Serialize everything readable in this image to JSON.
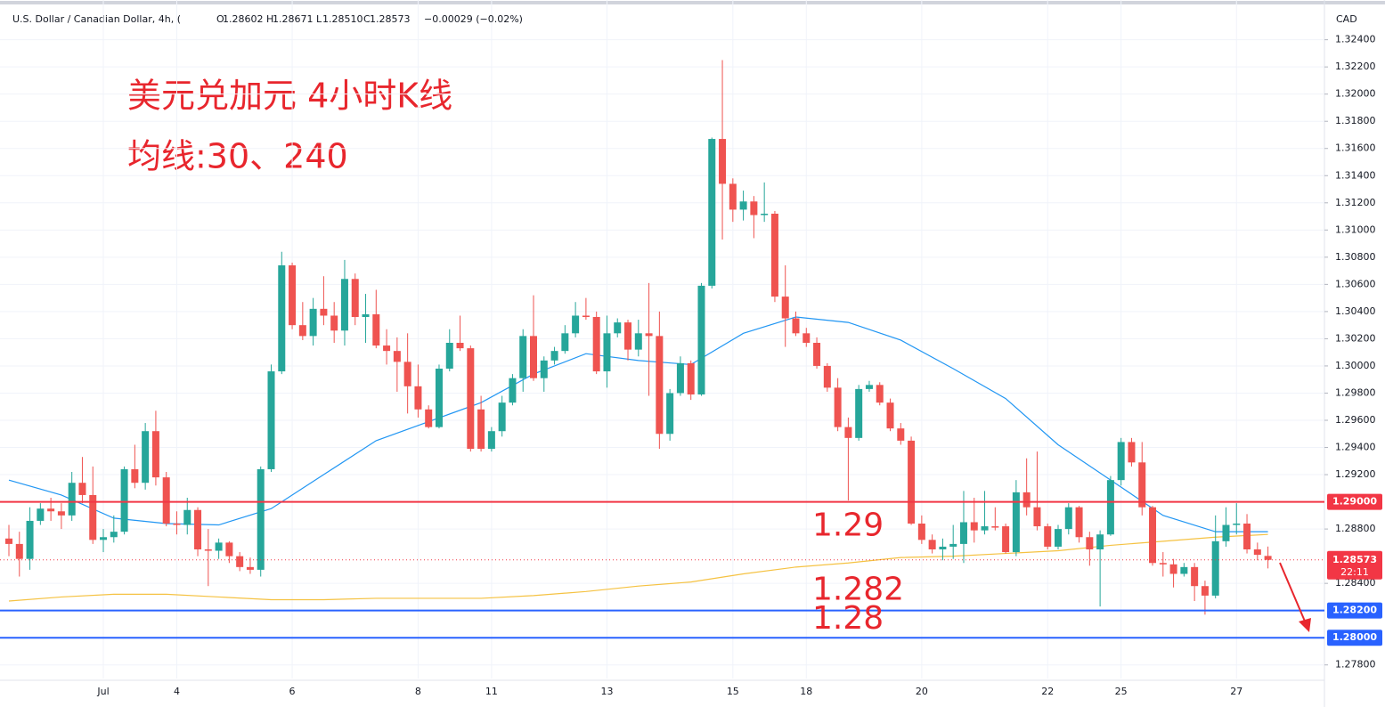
{
  "chart_data": {
    "type": "candlestick",
    "header": {
      "symbol": "U.S. Dollar / Canadian Dollar, 4h, (",
      "ohlc": [
        {
          "key": "O",
          "value": "1.28602"
        },
        {
          "key": "H",
          "value": "1.28671"
        },
        {
          "key": "L",
          "value": "1.28510"
        },
        {
          "key": "C",
          "value": "1.28573"
        }
      ],
      "change": "−0.00029 (−0.02%)"
    },
    "title": "美元兑加元 4小时K线",
    "subtitle": "均线:30、240",
    "currency": "CAD",
    "up_color": "#26a69a",
    "down_color": "#ef5350",
    "ylim": [
      1.277,
      1.3264
    ],
    "yticks": [
      {
        "value": 1.324,
        "label": "1.32400"
      },
      {
        "value": 1.322,
        "label": "1.32200"
      },
      {
        "value": 1.32,
        "label": "1.32000"
      },
      {
        "value": 1.318,
        "label": "1.31800"
      },
      {
        "value": 1.316,
        "label": "1.31600"
      },
      {
        "value": 1.314,
        "label": "1.31400"
      },
      {
        "value": 1.312,
        "label": "1.31200"
      },
      {
        "value": 1.31,
        "label": "1.31000"
      },
      {
        "value": 1.308,
        "label": "1.30800"
      },
      {
        "value": 1.306,
        "label": "1.30600"
      },
      {
        "value": 1.304,
        "label": "1.30400"
      },
      {
        "value": 1.302,
        "label": "1.30200"
      },
      {
        "value": 1.3,
        "label": "1.30000"
      },
      {
        "value": 1.298,
        "label": "1.29800"
      },
      {
        "value": 1.296,
        "label": "1.29600"
      },
      {
        "value": 1.294,
        "label": "1.29400"
      },
      {
        "value": 1.292,
        "label": "1.29200"
      },
      {
        "value": 1.288,
        "label": "1.28800"
      },
      {
        "value": 1.284,
        "label": "1.28400"
      },
      {
        "value": 1.278,
        "label": "1.27800"
      }
    ],
    "grid": true,
    "categories": [
      null,
      null,
      null,
      null,
      null,
      null,
      null,
      null,
      null,
      "Jul",
      null,
      null,
      null,
      null,
      null,
      null,
      "4",
      null,
      null,
      null,
      null,
      null,
      null,
      null,
      null,
      null,
      null,
      "6",
      null,
      null,
      null,
      null,
      null,
      null,
      null,
      null,
      null,
      null,
      null,
      "8",
      null,
      null,
      null,
      null,
      null,
      null,
      "11",
      null,
      null,
      null,
      null,
      null,
      null,
      null,
      null,
      null,
      null,
      "13",
      null,
      null,
      null,
      null,
      null,
      null,
      null,
      null,
      null,
      null,
      null,
      "15",
      null,
      null,
      null,
      null,
      null,
      null,
      "18",
      null,
      null,
      null,
      null,
      null,
      null,
      null,
      null,
      null,
      null,
      "20",
      null,
      null,
      null,
      null,
      null,
      null,
      null,
      null,
      null,
      null,
      null,
      "22",
      null,
      null,
      null,
      null,
      null,
      null,
      "25",
      null,
      null,
      null,
      null,
      null,
      null,
      null,
      null,
      null,
      null,
      "27",
      null,
      null,
      null
    ],
    "open": [
      1.2873,
      1.2869,
      1.2858,
      1.2886,
      1.2895,
      1.2893,
      1.289,
      1.2914,
      1.2905,
      1.2872,
      1.2874,
      1.2878,
      1.2924,
      1.2914,
      1.2952,
      1.2918,
      1.2884,
      1.2883,
      1.2894,
      1.2865,
      1.2864,
      1.287,
      1.286,
      1.2852,
      1.285,
      1.2924,
      1.2996,
      1.3074,
      1.303,
      1.3022,
      1.3042,
      1.3037,
      1.3026,
      1.3064,
      1.3036,
      1.3038,
      1.3015,
      1.3011,
      1.3003,
      1.2985,
      1.2968,
      1.2955,
      1.2998,
      1.3017,
      1.3013,
      1.2968,
      1.2939,
      1.2952,
      1.2973,
      1.2991,
      1.3022,
      1.2991,
      1.3004,
      1.3011,
      1.3024,
      1.3037,
      1.3036,
      1.2996,
      1.3024,
      1.3032,
      1.3012,
      1.3024,
      1.3022,
      1.295,
      1.298,
      1.3002,
      1.2979,
      1.3059,
      1.3167,
      1.3134,
      1.3115,
      1.3121,
      1.3111,
      1.3112,
      1.3051,
      1.3035,
      1.3024,
      1.3017,
      1.3,
      1.2984,
      1.2955,
      1.2947,
      1.2983,
      1.2986,
      1.2973,
      1.2954,
      1.2945,
      1.2884,
      1.2872,
      1.2865,
      1.2867,
      1.2869,
      1.2885,
      1.2879,
      1.2882,
      1.2882,
      1.2863,
      1.2907,
      1.2896,
      1.2882,
      1.2867,
      1.288,
      1.2896,
      1.2874,
      1.2865,
      1.2876,
      1.2916,
      1.2944,
      1.2929,
      1.2896,
      1.2855,
      1.2854,
      1.2847,
      1.2852,
      1.2838,
      1.2831,
      1.2871,
      1.2883,
      1.2884,
      1.2865,
      1.28602
    ],
    "high": [
      1.2883,
      1.2878,
      1.2896,
      1.2899,
      1.2903,
      1.2899,
      1.2922,
      1.2933,
      1.2926,
      1.288,
      1.289,
      1.2926,
      1.2942,
      1.2958,
      1.2967,
      1.2922,
      1.2893,
      1.2903,
      1.2896,
      1.288,
      1.2873,
      1.2871,
      1.2863,
      1.2859,
      1.2926,
      1.3001,
      1.3084,
      1.3076,
      1.3047,
      1.305,
      1.3066,
      1.3047,
      1.3078,
      1.3068,
      1.3053,
      1.3056,
      1.3027,
      1.3021,
      1.3024,
      1.3001,
      1.2971,
      1.3001,
      1.3027,
      1.3037,
      1.3015,
      1.2978,
      1.2955,
      1.2978,
      1.2994,
      1.3027,
      1.3052,
      1.3007,
      1.3014,
      1.303,
      1.3047,
      1.305,
      1.304,
      1.3037,
      1.3035,
      1.3034,
      1.3034,
      1.3061,
      1.304,
      1.2983,
      1.3007,
      1.3004,
      1.3061,
      1.3168,
      1.3225,
      1.3138,
      1.3129,
      1.3125,
      1.3135,
      1.3114,
      1.3074,
      1.304,
      1.3028,
      1.3021,
      1.3002,
      1.2991,
      1.2962,
      1.2986,
      1.2989,
      1.2988,
      1.2976,
      1.2958,
      1.2948,
      1.289,
      1.2876,
      1.2873,
      1.2883,
      1.2908,
      1.2903,
      1.2908,
      1.2896,
      1.2884,
      1.2916,
      1.2932,
      1.2937,
      1.2884,
      1.2883,
      1.2899,
      1.2897,
      1.2878,
      1.2879,
      1.2919,
      1.2947,
      1.2947,
      1.2944,
      1.2897,
      1.2863,
      1.2858,
      1.2855,
      1.2855,
      1.2842,
      1.289,
      1.2896,
      1.2899,
      1.2891,
      1.287,
      1.28671
    ],
    "low": [
      1.286,
      1.2845,
      1.285,
      1.2883,
      1.2886,
      1.288,
      1.2886,
      1.2899,
      1.2869,
      1.2863,
      1.287,
      1.2876,
      1.291,
      1.2909,
      1.2912,
      1.2882,
      1.2876,
      1.2876,
      1.286,
      1.2838,
      1.2858,
      1.2855,
      1.2849,
      1.2847,
      1.2845,
      1.2922,
      1.2994,
      1.3027,
      1.3019,
      1.3015,
      1.303,
      1.3017,
      1.3015,
      1.303,
      1.3017,
      1.3013,
      1.3001,
      1.2981,
      1.2965,
      1.2962,
      1.2954,
      1.2954,
      1.2996,
      1.3011,
      1.2937,
      1.2937,
      1.2937,
      1.2948,
      1.2971,
      1.2981,
      1.2989,
      1.2981,
      1.3001,
      1.3009,
      1.3021,
      1.3034,
      1.2994,
      1.2984,
      1.3021,
      1.3004,
      1.3007,
      1.2978,
      1.2939,
      1.2945,
      1.2978,
      1.2975,
      1.2978,
      1.3057,
      1.3093,
      1.3106,
      1.3107,
      1.3094,
      1.3106,
      1.3047,
      1.3014,
      1.3022,
      1.3014,
      1.2998,
      1.2981,
      1.2952,
      1.2901,
      1.2945,
      1.2981,
      1.2971,
      1.2952,
      1.2942,
      1.2883,
      1.2869,
      1.2862,
      1.2857,
      1.2858,
      1.2855,
      1.287,
      1.2876,
      1.2879,
      1.2862,
      1.286,
      1.289,
      1.2879,
      1.2865,
      1.2865,
      1.2876,
      1.287,
      1.2853,
      1.2823,
      1.2875,
      1.2912,
      1.2926,
      1.289,
      1.2853,
      1.2845,
      1.2837,
      1.2845,
      1.2827,
      1.2817,
      1.2829,
      1.2867,
      1.2876,
      1.2862,
      1.2857,
      1.2851
    ],
    "close": [
      1.2869,
      1.2858,
      1.2886,
      1.2895,
      1.2893,
      1.289,
      1.2914,
      1.2905,
      1.2872,
      1.2874,
      1.2878,
      1.2924,
      1.2914,
      1.2952,
      1.2918,
      1.2884,
      1.2883,
      1.2894,
      1.2865,
      1.2864,
      1.287,
      1.286,
      1.2852,
      1.285,
      1.2924,
      1.2996,
      1.3074,
      1.303,
      1.3022,
      1.3042,
      1.3037,
      1.3026,
      1.3064,
      1.3036,
      1.3038,
      1.3015,
      1.3011,
      1.3003,
      1.2985,
      1.2968,
      1.2955,
      1.2998,
      1.3017,
      1.3013,
      1.2939,
      1.2939,
      1.2952,
      1.2973,
      1.2991,
      1.3022,
      1.2991,
      1.3004,
      1.3011,
      1.3024,
      1.3037,
      1.3036,
      1.2996,
      1.3024,
      1.3032,
      1.3012,
      1.3024,
      1.3022,
      1.295,
      1.298,
      1.3002,
      1.2979,
      1.3059,
      1.3167,
      1.3134,
      1.3115,
      1.3121,
      1.3111,
      1.3112,
      1.3051,
      1.3035,
      1.3024,
      1.3017,
      1.3,
      1.2984,
      1.2955,
      1.2947,
      1.2983,
      1.2986,
      1.2973,
      1.2954,
      1.2945,
      1.2884,
      1.2872,
      1.2865,
      1.2867,
      1.2869,
      1.2885,
      1.2879,
      1.2882,
      1.2881,
      1.2863,
      1.2907,
      1.2896,
      1.2882,
      1.2867,
      1.288,
      1.2896,
      1.2874,
      1.2865,
      1.2876,
      1.2916,
      1.2944,
      1.2929,
      1.2896,
      1.2855,
      1.2854,
      1.2847,
      1.2852,
      1.2838,
      1.2831,
      1.2871,
      1.2883,
      1.2884,
      1.2865,
      1.2861,
      1.28573
    ],
    "series": [
      {
        "color": "#2196f3",
        "x": [
          0,
          5,
          10,
          15,
          20,
          25,
          30,
          35,
          40,
          45,
          50,
          55,
          60,
          65,
          70,
          75,
          80,
          85,
          90,
          95,
          100,
          105,
          110,
          115,
          120
        ],
        "values": [
          1.2916,
          1.2905,
          1.2888,
          1.2884,
          1.2883,
          1.2895,
          1.292,
          1.2945,
          1.2959,
          1.2973,
          1.2994,
          1.3009,
          1.3004,
          1.3001,
          1.3024,
          1.3036,
          1.3032,
          1.3019,
          1.2998,
          1.2976,
          1.2942,
          1.2916,
          1.289,
          1.2878,
          1.2878
        ]
      },
      {
        "color": "#f5c242",
        "x": [
          0,
          5,
          10,
          15,
          20,
          25,
          30,
          35,
          40,
          45,
          50,
          55,
          60,
          65,
          70,
          75,
          80,
          85,
          90,
          95,
          100,
          105,
          110,
          115,
          120
        ],
        "values": [
          1.2827,
          1.283,
          1.2832,
          1.2832,
          1.283,
          1.2828,
          1.2828,
          1.2829,
          1.2829,
          1.2829,
          1.2831,
          1.2834,
          1.2838,
          1.2841,
          1.2847,
          1.2852,
          1.2855,
          1.2859,
          1.286,
          1.2862,
          1.2864,
          1.2868,
          1.2871,
          1.2874,
          1.2876
        ]
      }
    ],
    "levels": [
      {
        "value": 1.29,
        "label": "1.29000",
        "color": "#f23645",
        "annotation": "1.29"
      },
      {
        "value": 1.282,
        "label": "1.28200",
        "color": "#2962ff",
        "annotation": "1.282"
      },
      {
        "value": 1.28,
        "label": "1.28000",
        "color": "#2962ff",
        "annotation": "1.28"
      }
    ],
    "last_price": {
      "value": 1.28573,
      "label": "1.28573",
      "countdown": "22:11",
      "color": "#f23645"
    }
  }
}
